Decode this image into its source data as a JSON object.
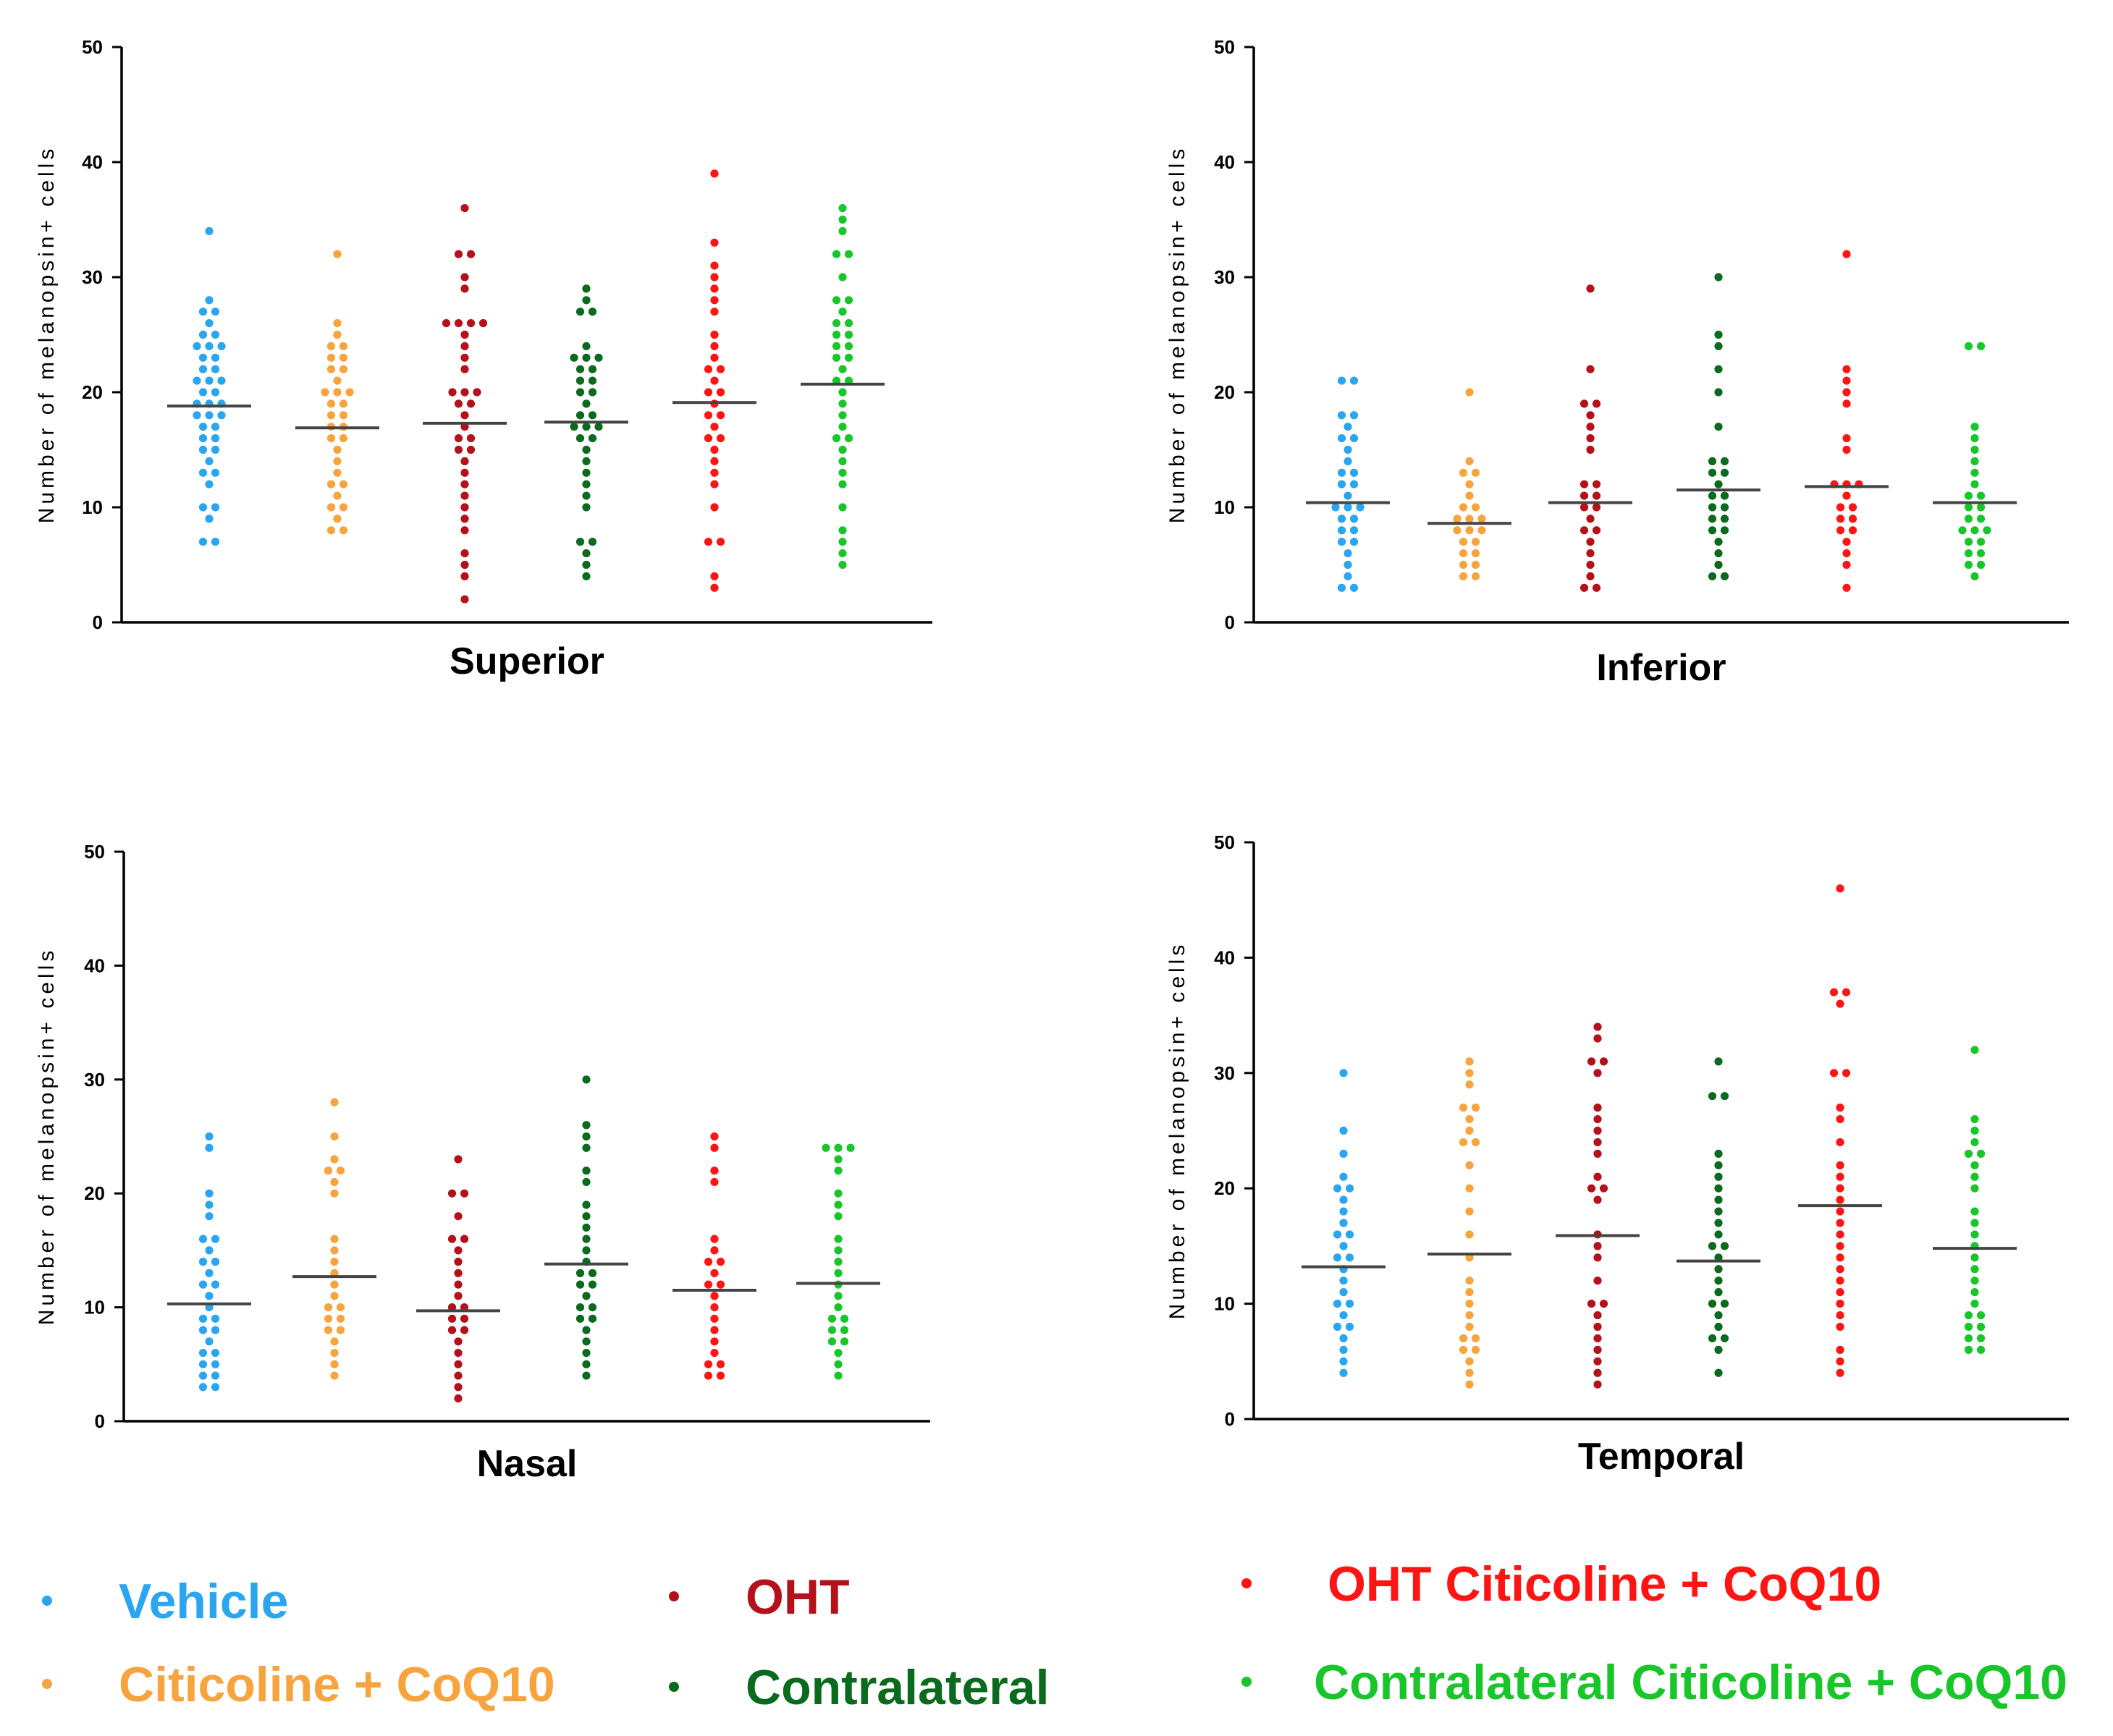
{
  "legend": {
    "items": [
      {
        "label": "Vehicle",
        "color": "#2aa5ef"
      },
      {
        "label": "Citicoline + CoQ10",
        "color": "#f7a43e"
      },
      {
        "label": "OHT",
        "color": "#b4111a"
      },
      {
        "label": "Contralateral",
        "color": "#0a6a1e"
      },
      {
        "label": "OHT Citicoline + CoQ10",
        "color": "#ff1414"
      },
      {
        "label": "Contralateral Citicoline + CoQ10",
        "color": "#19c62a"
      }
    ]
  },
  "chart_data": [
    {
      "type": "scatter",
      "title": "Superior",
      "ylabel": "Number of melanopsin+ cells",
      "ylim": [
        0,
        50
      ],
      "yticks": [
        0,
        10,
        20,
        30,
        40,
        50
      ],
      "mean_line_color": "#444444",
      "series": [
        {
          "name": "Vehicle",
          "mean": 18.8,
          "values": [
            34,
            28,
            27,
            27,
            26,
            25,
            25,
            24,
            24,
            24,
            23,
            23,
            22,
            22,
            21,
            21,
            21,
            20,
            20,
            19,
            19,
            19,
            18,
            18,
            18,
            17,
            17,
            16,
            16,
            15,
            15,
            14,
            13,
            13,
            12,
            10,
            10,
            9,
            7,
            7
          ]
        },
        {
          "name": "Citicoline + CoQ10",
          "mean": 16.9,
          "values": [
            32,
            26,
            25,
            24,
            24,
            23,
            23,
            22,
            22,
            21,
            20,
            20,
            20,
            19,
            19,
            18,
            18,
            17,
            17,
            16,
            16,
            15,
            14,
            13,
            12,
            12,
            11,
            10,
            10,
            9,
            8,
            8
          ]
        },
        {
          "name": "OHT",
          "mean": 17.3,
          "values": [
            36,
            32,
            32,
            30,
            29,
            26,
            26,
            26,
            26,
            25,
            24,
            23,
            22,
            20,
            20,
            20,
            19,
            19,
            18,
            17,
            16,
            16,
            15,
            15,
            14,
            13,
            12,
            11,
            10,
            9,
            8,
            6,
            5,
            4,
            2
          ]
        },
        {
          "name": "Contralateral",
          "mean": 17.4,
          "values": [
            29,
            28,
            27,
            27,
            24,
            23,
            23,
            23,
            22,
            22,
            21,
            21,
            20,
            20,
            19,
            18,
            18,
            17,
            17,
            17,
            16,
            16,
            15,
            14,
            13,
            12,
            11,
            10,
            7,
            7,
            6,
            5,
            4
          ]
        },
        {
          "name": "OHT Citicoline + CoQ10",
          "mean": 19.1,
          "values": [
            39,
            33,
            31,
            30,
            29,
            28,
            27,
            25,
            24,
            23,
            22,
            22,
            21,
            20,
            20,
            19,
            18,
            18,
            17,
            16,
            16,
            15,
            14,
            13,
            12,
            10,
            7,
            7,
            4,
            3
          ]
        },
        {
          "name": "Contralateral Citicoline + CoQ10",
          "mean": 20.7,
          "values": [
            36,
            35,
            34,
            32,
            32,
            30,
            28,
            28,
            27,
            26,
            26,
            25,
            25,
            24,
            24,
            23,
            23,
            22,
            21,
            21,
            20,
            19,
            18,
            17,
            16,
            16,
            15,
            14,
            13,
            12,
            10,
            8,
            7,
            6,
            5
          ]
        }
      ]
    },
    {
      "type": "scatter",
      "title": "Inferior",
      "ylabel": "Number of melanopsin+ cells",
      "ylim": [
        0,
        50
      ],
      "yticks": [
        0,
        10,
        20,
        30,
        40,
        50
      ],
      "mean_line_color": "#444444",
      "series": [
        {
          "name": "Vehicle",
          "mean": 10.4,
          "values": [
            21,
            21,
            18,
            18,
            17,
            16,
            16,
            15,
            14,
            13,
            13,
            12,
            12,
            11,
            10,
            10,
            10,
            9,
            9,
            8,
            8,
            7,
            7,
            6,
            5,
            4,
            3,
            3
          ]
        },
        {
          "name": "Citicoline + CoQ10",
          "mean": 8.6,
          "values": [
            20,
            14,
            13,
            13,
            12,
            11,
            10,
            10,
            9,
            9,
            9,
            8,
            8,
            8,
            7,
            7,
            6,
            6,
            5,
            5,
            4,
            4
          ]
        },
        {
          "name": "OHT",
          "mean": 10.4,
          "values": [
            29,
            22,
            19,
            19,
            18,
            17,
            16,
            15,
            12,
            12,
            11,
            11,
            10,
            10,
            9,
            8,
            8,
            7,
            6,
            5,
            4,
            3,
            3
          ]
        },
        {
          "name": "Contralateral",
          "mean": 11.5,
          "values": [
            30,
            25,
            24,
            22,
            20,
            17,
            14,
            14,
            13,
            13,
            12,
            11,
            11,
            10,
            10,
            9,
            9,
            8,
            8,
            7,
            6,
            5,
            4,
            4
          ]
        },
        {
          "name": "OHT Citicoline + CoQ10",
          "mean": 11.8,
          "values": [
            32,
            22,
            21,
            20,
            19,
            16,
            15,
            12,
            12,
            12,
            11,
            10,
            10,
            9,
            9,
            8,
            8,
            7,
            6,
            5,
            3
          ]
        },
        {
          "name": "Contralateral Citicoline + CoQ10",
          "mean": 10.4,
          "values": [
            24,
            24,
            17,
            16,
            15,
            14,
            13,
            12,
            11,
            11,
            10,
            10,
            9,
            9,
            8,
            8,
            8,
            7,
            7,
            6,
            6,
            5,
            5,
            4
          ]
        }
      ]
    },
    {
      "type": "scatter",
      "title": "Nasal",
      "ylabel": "Number of melanopsin+ cells",
      "ylim": [
        0,
        50
      ],
      "yticks": [
        0,
        10,
        20,
        30,
        40,
        50
      ],
      "mean_line_color": "#444444",
      "series": [
        {
          "name": "Vehicle",
          "mean": 10.3,
          "values": [
            25,
            24,
            20,
            19,
            18,
            16,
            16,
            15,
            14,
            14,
            13,
            12,
            12,
            11,
            10,
            9,
            9,
            8,
            8,
            7,
            6,
            6,
            5,
            5,
            4,
            4,
            3,
            3
          ]
        },
        {
          "name": "Citicoline + CoQ10",
          "mean": 12.7,
          "values": [
            28,
            25,
            23,
            22,
            22,
            21,
            20,
            16,
            15,
            14,
            13,
            12,
            11,
            10,
            10,
            9,
            9,
            8,
            8,
            7,
            6,
            5,
            4
          ]
        },
        {
          "name": "OHT",
          "mean": 9.7,
          "values": [
            23,
            20,
            20,
            18,
            16,
            16,
            15,
            14,
            13,
            12,
            11,
            10,
            10,
            9,
            9,
            8,
            8,
            7,
            6,
            5,
            4,
            3,
            2
          ]
        },
        {
          "name": "Contralateral",
          "mean": 13.8,
          "values": [
            30,
            26,
            25,
            24,
            22,
            21,
            19,
            18,
            17,
            16,
            15,
            14,
            13,
            13,
            12,
            12,
            11,
            10,
            10,
            9,
            9,
            8,
            7,
            6,
            5,
            4
          ]
        },
        {
          "name": "OHT Citicoline + CoQ10",
          "mean": 11.5,
          "values": [
            25,
            24,
            22,
            21,
            16,
            15,
            14,
            14,
            13,
            12,
            12,
            11,
            10,
            9,
            8,
            7,
            6,
            5,
            5,
            4,
            4
          ]
        },
        {
          "name": "Contralateral Citicoline + CoQ10",
          "mean": 12.1,
          "values": [
            24,
            24,
            24,
            23,
            22,
            20,
            19,
            18,
            16,
            15,
            14,
            13,
            12,
            11,
            10,
            9,
            9,
            8,
            8,
            7,
            7,
            6,
            5,
            4
          ]
        }
      ]
    },
    {
      "type": "scatter",
      "title": "Temporal",
      "ylabel": "Number of melanopsin+ cells",
      "ylim": [
        0,
        50
      ],
      "yticks": [
        0,
        10,
        20,
        30,
        40,
        50
      ],
      "mean_line_color": "#444444",
      "series": [
        {
          "name": "Vehicle",
          "mean": 13.2,
          "values": [
            30,
            25,
            23,
            21,
            20,
            20,
            19,
            18,
            17,
            16,
            16,
            15,
            14,
            14,
            13,
            12,
            11,
            10,
            10,
            9,
            8,
            8,
            7,
            6,
            5,
            4
          ]
        },
        {
          "name": "Citicoline + CoQ10",
          "mean": 14.3,
          "values": [
            31,
            30,
            29,
            27,
            27,
            26,
            25,
            24,
            24,
            22,
            20,
            18,
            16,
            14,
            12,
            11,
            10,
            9,
            8,
            7,
            7,
            6,
            6,
            5,
            4,
            3
          ]
        },
        {
          "name": "OHT",
          "mean": 15.9,
          "values": [
            34,
            33,
            31,
            31,
            30,
            27,
            26,
            25,
            24,
            23,
            21,
            20,
            20,
            19,
            16,
            15,
            14,
            12,
            10,
            10,
            9,
            8,
            7,
            6,
            5,
            4,
            3
          ]
        },
        {
          "name": "Contralateral",
          "mean": 13.7,
          "values": [
            31,
            28,
            28,
            23,
            22,
            21,
            20,
            19,
            18,
            17,
            16,
            15,
            15,
            14,
            13,
            12,
            11,
            10,
            10,
            9,
            8,
            7,
            7,
            6,
            4
          ]
        },
        {
          "name": "OHT Citicoline + CoQ10",
          "mean": 18.5,
          "values": [
            46,
            37,
            37,
            36,
            30,
            30,
            27,
            26,
            24,
            22,
            21,
            20,
            19,
            18,
            17,
            16,
            15,
            14,
            13,
            12,
            11,
            10,
            9,
            8,
            6,
            5,
            4
          ]
        },
        {
          "name": "Contralateral Citicoline + CoQ10",
          "mean": 14.8,
          "values": [
            32,
            26,
            25,
            24,
            23,
            23,
            22,
            21,
            20,
            18,
            17,
            16,
            15,
            14,
            13,
            12,
            11,
            10,
            9,
            9,
            8,
            8,
            7,
            7,
            6,
            6
          ]
        }
      ]
    }
  ]
}
